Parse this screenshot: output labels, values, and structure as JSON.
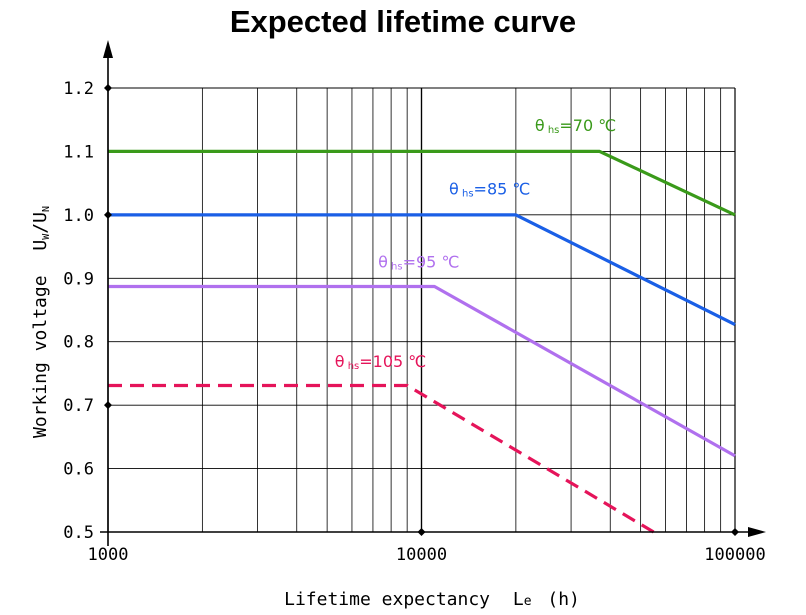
{
  "chart_data": {
    "type": "line",
    "title": "Expected lifetime curve",
    "xlabel": "Lifetime expectancy",
    "xlabel_symbol": "L",
    "xlabel_symbol_sub": "e",
    "xlabel_unit": "(h)",
    "ylabel": "Working voltage",
    "ylabel_symbol": "U",
    "ylabel_sub1": "W",
    "ylabel_sep": "/U",
    "ylabel_sub2": "N",
    "x_scale": "log",
    "xlim": [
      1000,
      100000
    ],
    "ylim": [
      0.5,
      1.2
    ],
    "x_ticks": [
      "1000",
      "10000",
      "100000"
    ],
    "y_ticks": [
      "0.5",
      "0.6",
      "0.7",
      "0.8",
      "0.9",
      "1.0",
      "1.1",
      "1.2"
    ],
    "grid": true,
    "series": [
      {
        "name": "θhs=70 ℃",
        "label_theta": "θ",
        "label_sub": "hs",
        "label_value": "=70 ℃",
        "color": "#3a9a1a",
        "dashed": false,
        "points": [
          [
            1000,
            1.1
          ],
          [
            37000,
            1.1
          ],
          [
            100000,
            1.0
          ]
        ]
      },
      {
        "name": "θhs=85 ℃",
        "label_theta": "θ",
        "label_sub": "hs",
        "label_value": "=85 ℃",
        "color": "#1a5fe6",
        "dashed": false,
        "points": [
          [
            1000,
            1.0
          ],
          [
            20000,
            1.0
          ],
          [
            100000,
            0.827
          ]
        ]
      },
      {
        "name": "θhs=95 ℃",
        "label_theta": "θ",
        "label_sub": "hs",
        "label_value": "=95 ℃",
        "color": "#b070ee",
        "dashed": false,
        "points": [
          [
            1000,
            0.887
          ],
          [
            11000,
            0.887
          ],
          [
            100000,
            0.62
          ]
        ]
      },
      {
        "name": "θhs=105 ℃",
        "label_theta": "θ",
        "label_sub": "hs",
        "label_value": "=105 ℃",
        "color": "#e5145a",
        "dashed": true,
        "points": [
          [
            1000,
            0.731
          ],
          [
            9000,
            0.731
          ],
          [
            55000,
            0.5
          ]
        ]
      }
    ]
  }
}
